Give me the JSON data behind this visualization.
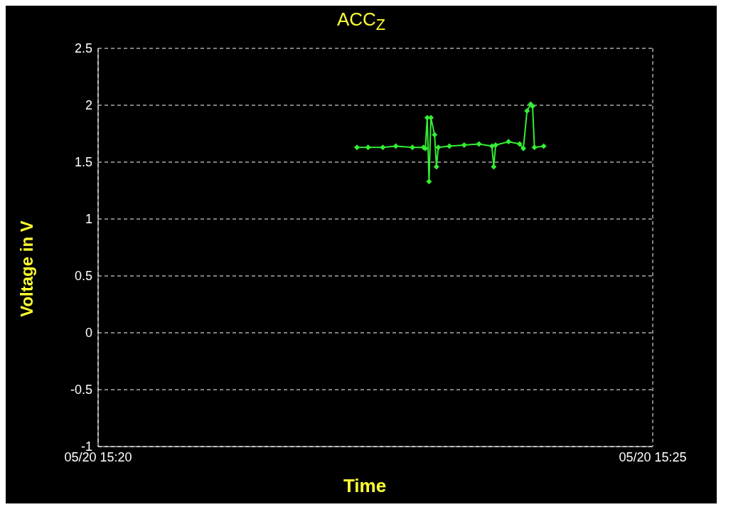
{
  "chart_data": {
    "type": "line",
    "title": "ACC$_{Z}$",
    "xlabel": "Time",
    "ylabel": "Voltage in V",
    "xlim": [
      "--05-20T15:20",
      "--05-20T15:25"
    ],
    "xticks": [
      {
        "value": "--05-20T15:20",
        "label": "05/20 15:20"
      },
      {
        "value": "--05-20T15:25",
        "label": "05/20 15:25"
      }
    ],
    "ylim": [
      -1,
      2.5
    ],
    "yticks": [
      -1,
      -0.5,
      0,
      0.5,
      1,
      1.5,
      2,
      2.5
    ],
    "grid": true,
    "line_style": "solid",
    "marker": "diamond",
    "series": [
      {
        "color": "#33ee33",
        "x": [
          "--05-20T15:22:20",
          "--05-20T15:22:26",
          "--05-20T15:22:34",
          "--05-20T15:22:41",
          "--05-20T15:22:50",
          "--05-20T15:22:56",
          "--05-20T15:22:57",
          "--05-20T15:22:58",
          "--05-20T15:22:59",
          "--05-20T15:23:00",
          "--05-20T15:23:02",
          "--05-20T15:23:03",
          "--05-20T15:23:04",
          "--05-20T15:23:10",
          "--05-20T15:23:18",
          "--05-20T15:23:26",
          "--05-20T15:23:33",
          "--05-20T15:23:34",
          "--05-20T15:23:35",
          "--05-20T15:23:42",
          "--05-20T15:23:48",
          "--05-20T15:23:50",
          "--05-20T15:23:52",
          "--05-20T15:23:54",
          "--05-20T15:23:55",
          "--05-20T15:23:56",
          "--05-20T15:24:01"
        ],
        "values": [
          1.63,
          1.63,
          1.63,
          1.64,
          1.63,
          1.63,
          1.62,
          1.89,
          1.33,
          1.89,
          1.74,
          1.46,
          1.63,
          1.64,
          1.65,
          1.66,
          1.64,
          1.46,
          1.65,
          1.68,
          1.66,
          1.62,
          1.95,
          2.01,
          1.99,
          1.63,
          1.64
        ]
      }
    ]
  }
}
